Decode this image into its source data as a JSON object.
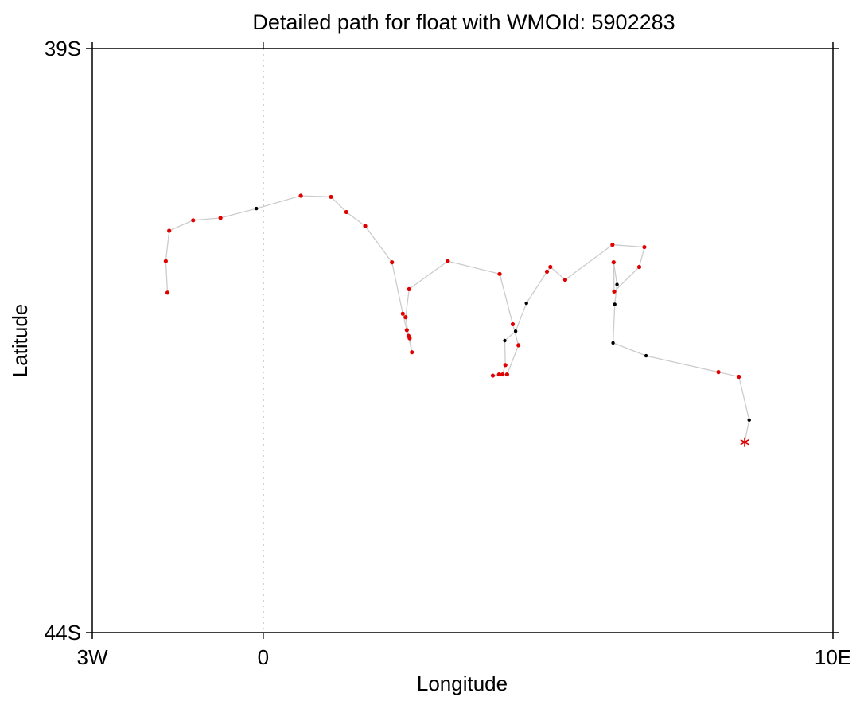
{
  "chart_data": {
    "type": "scatter",
    "title": "Detailed path for float with WMOId: 5902283",
    "xlabel": "Longitude",
    "ylabel": "Latitude",
    "xlim": [
      -3,
      10
    ],
    "ylim": [
      -44,
      -39
    ],
    "x_ticks": [
      {
        "value": -3,
        "label": "3W"
      },
      {
        "value": 0,
        "label": "0"
      },
      {
        "value": 10,
        "label": "10E"
      }
    ],
    "y_ticks": [
      {
        "value": -39,
        "label": "39S"
      },
      {
        "value": -44,
        "label": "44S"
      }
    ],
    "reference_lines": [
      {
        "axis": "x",
        "value": 0,
        "style": "dotted",
        "color": "#999999"
      }
    ],
    "grid": false,
    "path_color": "#cccccc",
    "point_colors": {
      "red": "#e00000",
      "black": "#000000"
    },
    "series": [
      {
        "points": [
          {
            "x": -1.68,
            "y": -41.09,
            "c": "red"
          },
          {
            "x": -1.71,
            "y": -40.82,
            "c": "red"
          },
          {
            "x": -1.65,
            "y": -40.56,
            "c": "red"
          },
          {
            "x": -1.23,
            "y": -40.47,
            "c": "red"
          },
          {
            "x": -0.75,
            "y": -40.45,
            "c": "red"
          },
          {
            "x": -0.12,
            "y": -40.37,
            "c": "black"
          },
          {
            "x": 0.66,
            "y": -40.26,
            "c": "red"
          },
          {
            "x": 1.19,
            "y": -40.27,
            "c": "red"
          },
          {
            "x": 1.46,
            "y": -40.4,
            "c": "red"
          },
          {
            "x": 1.79,
            "y": -40.52,
            "c": "red"
          },
          {
            "x": 2.26,
            "y": -40.83,
            "c": "red"
          },
          {
            "x": 2.45,
            "y": -41.27,
            "c": "red"
          },
          {
            "x": 2.52,
            "y": -41.41,
            "c": "red"
          },
          {
            "x": 2.57,
            "y": -41.48,
            "c": "red"
          },
          {
            "x": 2.61,
            "y": -41.6,
            "c": "red"
          },
          {
            "x": 2.55,
            "y": -41.46,
            "c": "red"
          },
          {
            "x": 2.5,
            "y": -41.3,
            "c": "red"
          },
          {
            "x": 2.56,
            "y": -41.06,
            "c": "red"
          },
          {
            "x": 3.24,
            "y": -40.82,
            "c": "red"
          },
          {
            "x": 4.15,
            "y": -40.93,
            "c": "red"
          },
          {
            "x": 4.38,
            "y": -41.36,
            "c": "red"
          },
          {
            "x": 4.48,
            "y": -41.54,
            "c": "red"
          },
          {
            "x": 4.28,
            "y": -41.79,
            "c": "red"
          },
          {
            "x": 4.14,
            "y": -41.79,
            "c": "red"
          },
          {
            "x": 4.03,
            "y": -41.8,
            "c": "red"
          },
          {
            "x": 4.2,
            "y": -41.79,
            "c": "red"
          },
          {
            "x": 4.25,
            "y": -41.71,
            "c": "red"
          },
          {
            "x": 4.24,
            "y": -41.5,
            "c": "black"
          },
          {
            "x": 4.43,
            "y": -41.42,
            "c": "black"
          },
          {
            "x": 4.62,
            "y": -41.18,
            "c": "black"
          },
          {
            "x": 4.98,
            "y": -40.91,
            "c": "red"
          },
          {
            "x": 5.04,
            "y": -40.87,
            "c": "red"
          },
          {
            "x": 5.3,
            "y": -40.98,
            "c": "red"
          },
          {
            "x": 6.13,
            "y": -40.68,
            "c": "red"
          },
          {
            "x": 6.69,
            "y": -40.7,
            "c": "red"
          },
          {
            "x": 6.6,
            "y": -40.87,
            "c": "red"
          },
          {
            "x": 6.16,
            "y": -41.08,
            "c": "red"
          },
          {
            "x": 6.15,
            "y": -40.83,
            "c": "red"
          },
          {
            "x": 6.21,
            "y": -41.02,
            "c": "black"
          },
          {
            "x": 6.17,
            "y": -41.19,
            "c": "black"
          },
          {
            "x": 6.14,
            "y": -41.52,
            "c": "black"
          },
          {
            "x": 6.72,
            "y": -41.63,
            "c": "black"
          },
          {
            "x": 7.99,
            "y": -41.77,
            "c": "red"
          },
          {
            "x": 8.35,
            "y": -41.81,
            "c": "red"
          },
          {
            "x": 8.53,
            "y": -42.18,
            "c": "black"
          }
        ],
        "end_marker": {
          "x": 8.45,
          "y": -42.37,
          "symbol": "asterisk",
          "c": "red"
        }
      }
    ]
  }
}
